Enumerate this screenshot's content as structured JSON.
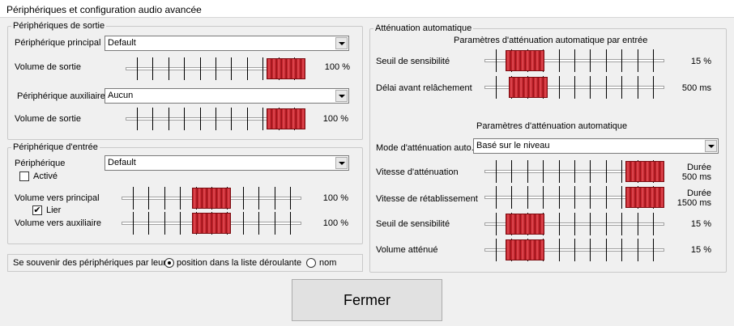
{
  "window": {
    "title": "Périphériques et configuration audio avancée"
  },
  "output": {
    "legend": "Périphériques de sortie",
    "main_device_label": "Périphérique principal",
    "main_device_value": "Default",
    "main_volume_label": "Volume de sortie",
    "main_volume_value": "100 %",
    "main_volume_level": 1.0,
    "aux_device_label": "Périphérique auxiliaire",
    "aux_device_value": "Aucun",
    "aux_volume_label": "Volume de sortie",
    "aux_volume_value": "100 %",
    "aux_volume_level": 1.0
  },
  "input": {
    "legend": "Périphérique d'entrée",
    "device_label": "Périphérique",
    "device_value": "Default",
    "enabled_label": "Activé",
    "enabled_checked": false,
    "to_main_label": "Volume vers principal",
    "to_main_value": "100 %",
    "to_main_level": 0.5,
    "link_label": "Lier",
    "link_checked": true,
    "to_aux_label": "Volume vers auxiliaire",
    "to_aux_value": "100 %",
    "to_aux_level": 0.5
  },
  "remember": {
    "label": "Se souvenir des périphériques par leur",
    "option_position": "position dans la liste déroulante",
    "option_name": "nom",
    "selected": "position"
  },
  "ducking": {
    "legend": "Atténuation automatique",
    "per_input_title": "Paramètres d'atténuation automatique par entrée",
    "threshold_label": "Seuil de sensibilité",
    "threshold_value": "15 %",
    "threshold_level": 0.15,
    "release_label": "Délai avant relâchement",
    "release_value": "500 ms",
    "release_level": 0.17,
    "auto_title": "Paramètres d'atténuation automatique",
    "mode_label": "Mode d'atténuation auto.",
    "mode_value": "Basé sur le niveau",
    "attack_label": "Vitesse d'atténuation",
    "attack_value_line1": "Durée",
    "attack_value_line2": "500 ms",
    "attack_level": 1.0,
    "restore_label": "Vitesse de rétablissement",
    "restore_value_line1": "Durée",
    "restore_value_line2": "1500 ms",
    "restore_level": 1.0,
    "threshold2_label": "Seuil de sensibilité",
    "threshold2_value": "15 %",
    "threshold2_level": 0.15,
    "duck_volume_label": "Volume atténué",
    "duck_volume_value": "15 %",
    "duck_volume_level": 0.15
  },
  "buttons": {
    "close_label": "Fermer"
  },
  "colors": {
    "slider_thumb": "#c8202a",
    "background": "#f0f0f0"
  }
}
